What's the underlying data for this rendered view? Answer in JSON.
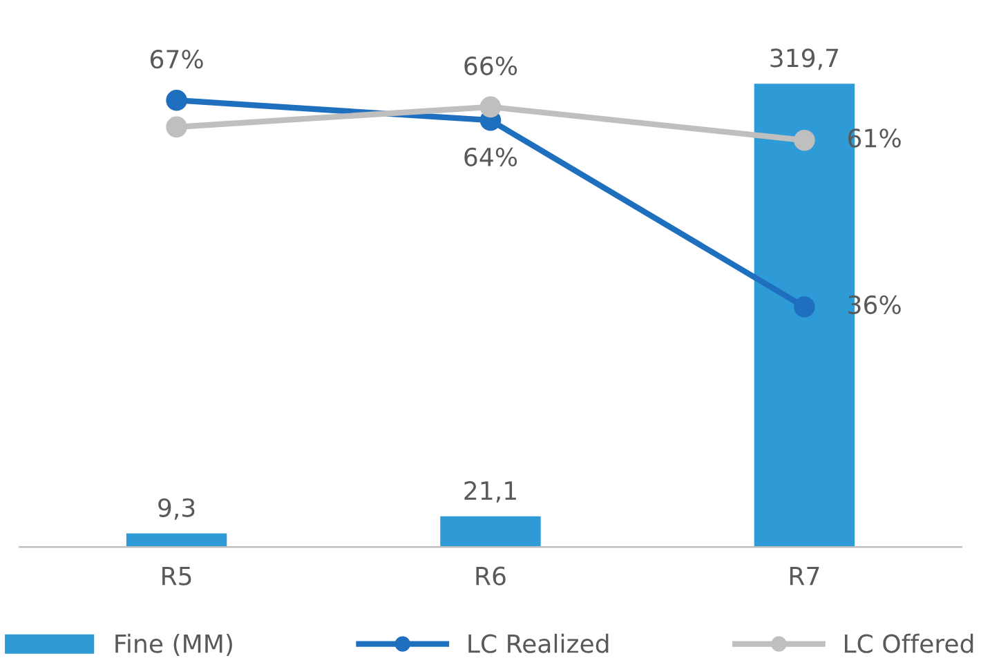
{
  "chart_data": {
    "type": "bar",
    "categories": [
      "R5",
      "R6",
      "R7"
    ],
    "series": [
      {
        "name": "Fine (MM)",
        "color": "#2e9bd6",
        "values": [
          9.3,
          21.1,
          319.7
        ],
        "value_labels": [
          "9,3",
          "21,1",
          "319,7"
        ]
      },
      {
        "name": "LC Realized",
        "type": "line",
        "axis": "y2",
        "color": "#1f6fbf",
        "values": [
          67,
          64,
          36
        ],
        "value_labels": [
          "67%",
          "64%",
          "36%"
        ]
      },
      {
        "name": "LC Offered",
        "type": "line",
        "axis": "y2",
        "color": "#bfbfbf",
        "values": [
          63,
          66,
          61
        ],
        "value_labels": [
          null,
          "66%",
          "61%"
        ]
      }
    ],
    "marker": "circle",
    "line_style": "solid",
    "legend": "bottom",
    "tick_labels": "x"
  }
}
